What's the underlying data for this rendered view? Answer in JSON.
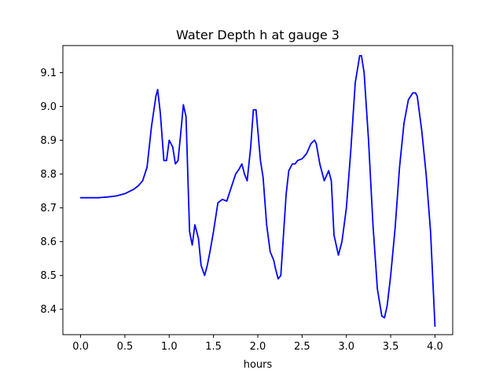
{
  "chart_data": {
    "type": "line",
    "title": "Water Depth h at gauge 3",
    "xlabel": "hours",
    "ylabel": "",
    "xlim": [
      -0.2,
      4.2
    ],
    "ylim": [
      8.325,
      9.18
    ],
    "xticks": [
      0.0,
      0.5,
      1.0,
      1.5,
      2.0,
      2.5,
      3.0,
      3.5,
      4.0
    ],
    "xtick_labels": [
      "0.0",
      "0.5",
      "1.0",
      "1.5",
      "2.0",
      "2.5",
      "3.0",
      "3.5",
      "4.0"
    ],
    "yticks": [
      8.4,
      8.5,
      8.6,
      8.7,
      8.8,
      8.9,
      9.0,
      9.1
    ],
    "ytick_labels": [
      "8.4",
      "8.5",
      "8.6",
      "8.7",
      "8.8",
      "8.9",
      "9.0",
      "9.1"
    ],
    "grid": false,
    "line_color": "#0000ff",
    "series": [
      {
        "x": [
          0.0,
          0.1,
          0.2,
          0.3,
          0.4,
          0.5,
          0.6,
          0.65,
          0.7,
          0.75,
          0.8,
          0.85,
          0.87,
          0.9,
          0.94,
          0.97,
          1.0,
          1.04,
          1.07,
          1.1,
          1.13,
          1.16,
          1.19,
          1.21,
          1.23,
          1.26,
          1.29,
          1.33,
          1.36,
          1.4,
          1.43,
          1.46,
          1.5,
          1.55,
          1.6,
          1.65,
          1.7,
          1.75,
          1.79,
          1.82,
          1.85,
          1.88,
          1.92,
          1.95,
          1.98,
          2.0,
          2.03,
          2.06,
          2.1,
          2.14,
          2.18,
          2.2,
          2.23,
          2.26,
          2.29,
          2.32,
          2.35,
          2.39,
          2.42,
          2.45,
          2.5,
          2.55,
          2.6,
          2.64,
          2.66,
          2.7,
          2.75,
          2.8,
          2.83,
          2.86,
          2.91,
          2.95,
          3.0,
          3.05,
          3.1,
          3.15,
          3.17,
          3.2,
          3.25,
          3.3,
          3.35,
          3.4,
          3.43,
          3.46,
          3.5,
          3.55,
          3.6,
          3.65,
          3.7,
          3.75,
          3.78,
          3.8,
          3.85,
          3.9,
          3.95,
          4.0
        ],
        "y": [
          8.73,
          8.73,
          8.73,
          8.732,
          8.735,
          8.742,
          8.755,
          8.765,
          8.78,
          8.82,
          8.94,
          9.03,
          9.05,
          8.98,
          8.84,
          8.84,
          8.9,
          8.88,
          8.83,
          8.84,
          8.92,
          9.005,
          8.97,
          8.8,
          8.63,
          8.59,
          8.65,
          8.61,
          8.53,
          8.5,
          8.53,
          8.57,
          8.63,
          8.715,
          8.725,
          8.72,
          8.76,
          8.8,
          8.815,
          8.83,
          8.8,
          8.78,
          8.88,
          8.99,
          8.99,
          8.93,
          8.84,
          8.79,
          8.65,
          8.57,
          8.545,
          8.52,
          8.49,
          8.5,
          8.62,
          8.74,
          8.81,
          8.83,
          8.83,
          8.84,
          8.845,
          8.86,
          8.89,
          8.9,
          8.89,
          8.83,
          8.78,
          8.81,
          8.78,
          8.62,
          8.56,
          8.6,
          8.7,
          8.87,
          9.07,
          9.15,
          9.15,
          9.1,
          8.9,
          8.65,
          8.46,
          8.38,
          8.375,
          8.41,
          8.5,
          8.64,
          8.82,
          8.95,
          9.02,
          9.04,
          9.04,
          9.03,
          8.93,
          8.8,
          8.63,
          8.35
        ]
      }
    ]
  }
}
